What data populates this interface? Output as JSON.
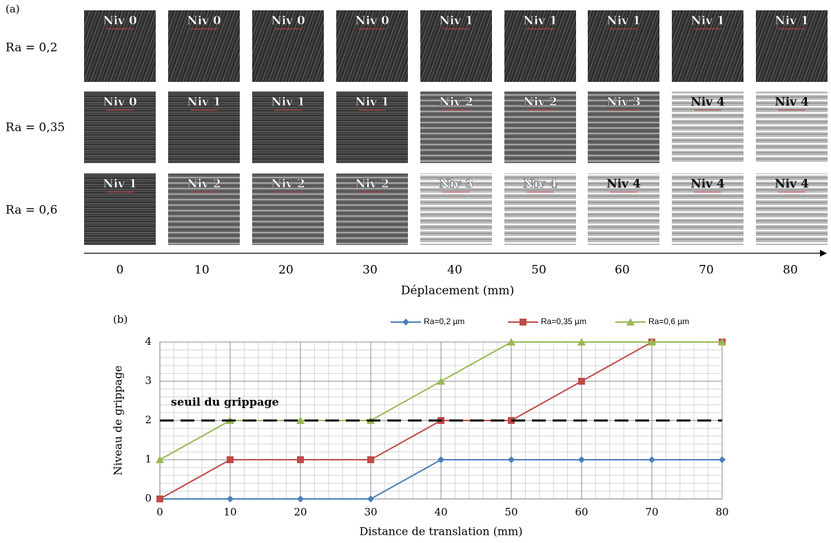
{
  "panel_a": {
    "label": "(a)",
    "rows": [
      {
        "label": "Ra = 0,2",
        "cells": [
          "Niv 0",
          "Niv 0",
          "Niv 0",
          "Niv 0",
          "Niv 1",
          "Niv 1",
          "Niv 1",
          "Niv 1",
          "Niv 1"
        ]
      },
      {
        "label": "Ra = 0,35",
        "cells": [
          "Niv 0",
          "Niv 1",
          "Niv 1",
          "Niv 1",
          "Niv 2",
          "Niv 2",
          "Niv 3",
          "Niv 4",
          "Niv 4"
        ]
      },
      {
        "label": "Ra = 0,6",
        "cells": [
          "Niv 1",
          "Niv 2",
          "Niv 2",
          "Niv 2",
          "Niv 3",
          "Niv 4",
          "Niv 4",
          "Niv 4",
          "Niv 4"
        ]
      }
    ],
    "ticks": [
      0,
      10,
      20,
      30,
      40,
      50,
      60,
      70,
      80
    ],
    "axis_label": "Déplacement (mm)"
  },
  "chart_data": {
    "type": "line",
    "panel_label": "(b)",
    "x": [
      0,
      10,
      20,
      30,
      40,
      50,
      60,
      70,
      80
    ],
    "series": [
      {
        "name": "Ra=0,2 µm",
        "color": "#4a7ebb",
        "marker": "diamond",
        "values": [
          0,
          0,
          0,
          0,
          1,
          1,
          1,
          1,
          1
        ]
      },
      {
        "name": "Ra=0,35 µm",
        "color": "#be4b48",
        "marker": "square",
        "values": [
          0,
          1,
          1,
          1,
          2,
          2,
          3,
          4,
          4
        ]
      },
      {
        "name": "Ra=0,6 µm",
        "color": "#98b954",
        "marker": "triangle",
        "values": [
          1,
          2,
          2,
          2,
          3,
          4,
          4,
          4,
          4
        ]
      }
    ],
    "xlim": [
      0,
      80
    ],
    "xticks": [
      0,
      10,
      20,
      30,
      40,
      50,
      60,
      70,
      80
    ],
    "ylim": [
      0,
      4
    ],
    "yticks": [
      0,
      1,
      2,
      3,
      4
    ],
    "xlabel": "Distance de translation (mm)",
    "ylabel": "Niveau de grippage",
    "threshold": {
      "value": 2,
      "label": "seuil du grippage"
    },
    "grid": true,
    "legend": "top"
  }
}
